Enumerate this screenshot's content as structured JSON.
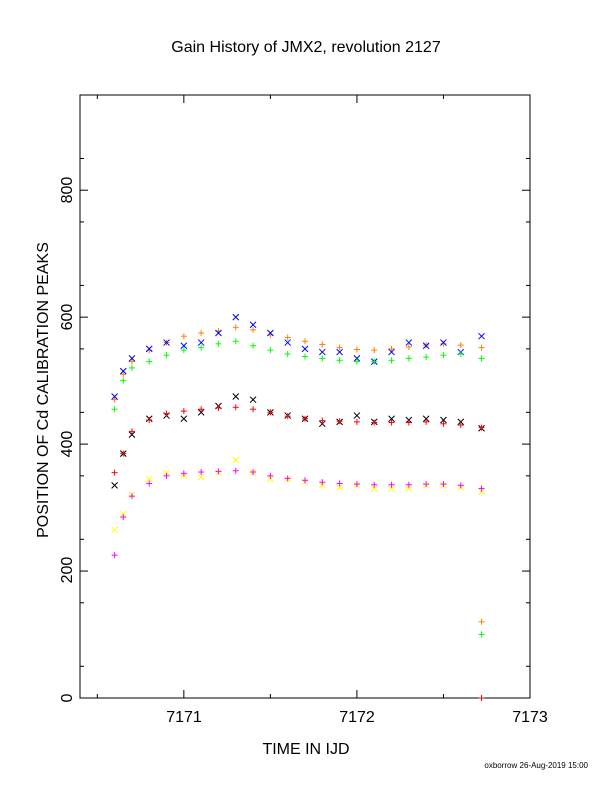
{
  "chart_data": {
    "type": "scatter",
    "title": "Gain History of JMX2, revolution 2127",
    "xlabel": "TIME IN IJD",
    "ylabel": "POSITION OF Cd CALIBRATION PEAKS",
    "xlim": [
      7170.4,
      7173.0
    ],
    "ylim": [
      0,
      950
    ],
    "x_ticks": [
      7171,
      7172,
      7173
    ],
    "y_ticks": [
      0,
      200,
      400,
      600,
      800
    ],
    "x_tick_labels": [
      "7171",
      "7172",
      "7173"
    ],
    "y_tick_labels": [
      "0",
      "200",
      "400",
      "600",
      "800"
    ],
    "grid": false,
    "footer": "oxborrow 26-Aug-2019 15:00",
    "x": [
      7170.6,
      7170.65,
      7170.7,
      7170.8,
      7170.9,
      7171.0,
      7171.1,
      7171.2,
      7171.3,
      7171.4,
      7171.5,
      7171.6,
      7171.7,
      7171.8,
      7171.9,
      7172.0,
      7172.1,
      7172.2,
      7172.3,
      7172.4,
      7172.5,
      7172.6,
      7172.72
    ],
    "series": [
      {
        "color": "#ff7f00",
        "marker": "+",
        "values": [
          470,
          510,
          530,
          548,
          560,
          570,
          575,
          578,
          584,
          580,
          572,
          568,
          562,
          557,
          552,
          549,
          548,
          550,
          553,
          556,
          558,
          556,
          552
        ]
      },
      {
        "color": "#0000ff",
        "marker": "x",
        "values": [
          475,
          515,
          535,
          550,
          560,
          555,
          560,
          575,
          600,
          588,
          575,
          560,
          550,
          545,
          545,
          535,
          530,
          545,
          560,
          555,
          560,
          545,
          570
        ]
      },
      {
        "color": "#00ff00",
        "marker": "+",
        "values": [
          455,
          500,
          520,
          530,
          540,
          548,
          552,
          558,
          562,
          555,
          548,
          542,
          538,
          535,
          532,
          530,
          530,
          532,
          535,
          537,
          540,
          542,
          535
        ]
      },
      {
        "color": "#000000",
        "marker": "x",
        "values": [
          335,
          385,
          415,
          440,
          445,
          440,
          450,
          460,
          475,
          470,
          450,
          445,
          440,
          432,
          435,
          445,
          435,
          440,
          438,
          440,
          438,
          435,
          425
        ]
      },
      {
        "color": "#ff0000",
        "marker": "+",
        "values": [
          355,
          385,
          420,
          438,
          448,
          452,
          455,
          457,
          458,
          455,
          450,
          444,
          440,
          437,
          436,
          435,
          434,
          434,
          434,
          435,
          432,
          430,
          426
        ]
      },
      {
        "color": "#ffff00",
        "marker": "x",
        "values": [
          265,
          290,
          320,
          345,
          355,
          350,
          348,
          355,
          375,
          355,
          345,
          345,
          340,
          335,
          332,
          335,
          330,
          330,
          330,
          335,
          335,
          332,
          325
        ]
      },
      {
        "color": "#ff00ff",
        "marker": "+",
        "values": [
          225,
          285,
          318,
          338,
          350,
          354,
          356,
          357,
          358,
          356,
          350,
          346,
          343,
          340,
          338,
          337,
          336,
          336,
          336,
          337,
          337,
          335,
          330
        ]
      }
    ],
    "outliers": [
      {
        "x": 7172.72,
        "y": 120,
        "color": "#ff7f00"
      },
      {
        "x": 7172.72,
        "y": 100,
        "color": "#00ff00"
      },
      {
        "x": 7172.72,
        "y": 0,
        "color": "#ff0000"
      }
    ]
  }
}
